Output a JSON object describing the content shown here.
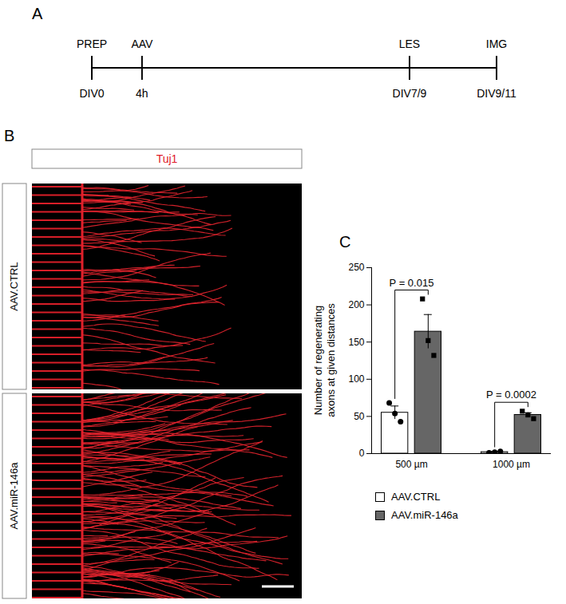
{
  "panel_a": {
    "letter": "A",
    "events": [
      {
        "top": "PREP",
        "bottom": "DIV0"
      },
      {
        "top": "AAV",
        "bottom": "4h"
      },
      {
        "top": "LES",
        "bottom": "DIV7/9"
      },
      {
        "top": "IMG",
        "bottom": "DIV9/11"
      }
    ]
  },
  "panel_b": {
    "letter": "B",
    "header": "Tuj1",
    "rows": [
      "AAV.CTRL",
      "AAV.miR-146a"
    ]
  },
  "chart_data": {
    "type": "bar",
    "panel_label": "C",
    "y_label": "Number of regenerating axons at given distances",
    "categories": [
      "500 µm",
      "1000 µm"
    ],
    "series": [
      {
        "name": "AAV.CTRL",
        "color": "#ffffff",
        "marker": "circle",
        "values": [
          55,
          2
        ],
        "errors": [
          9,
          1
        ],
        "points": [
          [
            68,
            54,
            43
          ],
          [
            1,
            2,
            3
          ]
        ]
      },
      {
        "name": "AAV.miR-146a",
        "color": "#666666",
        "marker": "square",
        "values": [
          164,
          52
        ],
        "errors": [
          23,
          3
        ],
        "points": [
          [
            208,
            152,
            132
          ],
          [
            57,
            52,
            47
          ]
        ]
      }
    ],
    "ylim": [
      0,
      250
    ],
    "yticks": [
      0,
      50,
      100,
      150,
      200,
      250
    ],
    "annotations": [
      {
        "text": "P = 0.015",
        "category": "500 µm"
      },
      {
        "text": "P = 0.0002",
        "category": "1000 µm"
      }
    ],
    "legend": "bottom"
  }
}
